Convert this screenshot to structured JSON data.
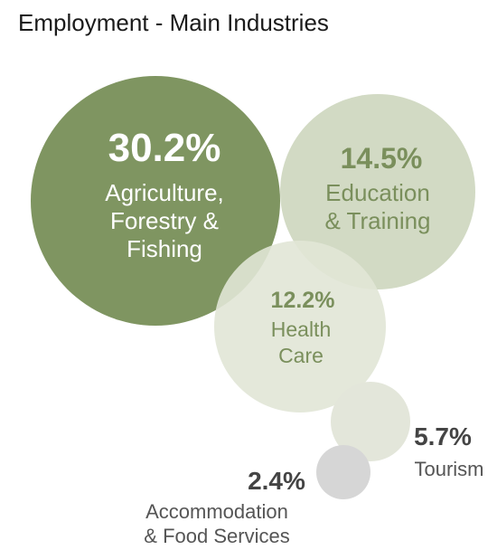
{
  "chart_data": {
    "type": "bubble",
    "title": "Employment - Main Industries",
    "series": [
      {
        "pct": "30.2%",
        "value": 30.2,
        "label_lines": [
          "Agriculture,",
          "Forestry &",
          "Fishing"
        ]
      },
      {
        "pct": "14.5%",
        "value": 14.5,
        "label_lines": [
          "Education",
          "& Training"
        ]
      },
      {
        "pct": "12.2%",
        "value": 12.2,
        "label_lines": [
          "Health",
          "Care"
        ]
      },
      {
        "pct": "5.7%",
        "value": 5.7,
        "label_lines": [
          "Tourism"
        ]
      },
      {
        "pct": "2.4%",
        "value": 2.4,
        "label_lines": [
          "Accommodation",
          "& Food Services"
        ]
      }
    ]
  },
  "colors": {
    "agriculture": "#7f9561",
    "education": "#c5cfb3",
    "health": "#e1e5d6",
    "tourism": "#e3e6da",
    "accommodation": "#d6d6d6",
    "pct_on_light": "#7a8f5c",
    "label_on_light": "#7a8f5c",
    "pct_outside": "#444444",
    "label_outside": "#555555",
    "text_on_dark": "#ffffff"
  }
}
